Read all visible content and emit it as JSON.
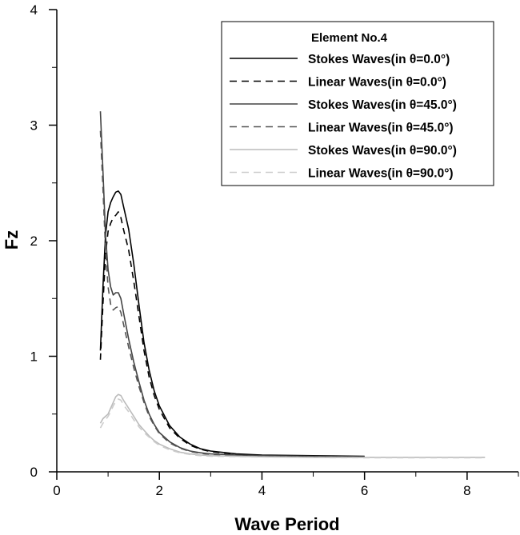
{
  "chart_data": {
    "type": "line",
    "title": "",
    "xlabel": "Wave Period",
    "ylabel": "Fz",
    "xlim": [
      0,
      9
    ],
    "ylim": [
      0,
      4
    ],
    "x_ticks": [
      0,
      2,
      4,
      6,
      8
    ],
    "y_ticks": [
      0,
      1,
      2,
      3,
      4
    ],
    "x_tick_labels": [
      "0",
      "2",
      "4",
      "6",
      "8"
    ],
    "y_tick_labels": [
      "0",
      "1",
      "2",
      "3",
      "4"
    ],
    "grid": false,
    "legend_position": "top-right",
    "legend_title": "Element No.4",
    "series": [
      {
        "name": "Stokes Waves(in θ=0.0°)",
        "color": "#000000",
        "dash": "solid",
        "points": [
          [
            0.85,
            1.05
          ],
          [
            0.9,
            1.6
          ],
          [
            0.95,
            2.05
          ],
          [
            1.0,
            2.25
          ],
          [
            1.05,
            2.33
          ],
          [
            1.1,
            2.38
          ],
          [
            1.15,
            2.42
          ],
          [
            1.2,
            2.43
          ],
          [
            1.25,
            2.4
          ],
          [
            1.3,
            2.3
          ],
          [
            1.4,
            2.1
          ],
          [
            1.5,
            1.8
          ],
          [
            1.6,
            1.45
          ],
          [
            1.7,
            1.12
          ],
          [
            1.8,
            0.88
          ],
          [
            1.9,
            0.7
          ],
          [
            2.0,
            0.57
          ],
          [
            2.2,
            0.4
          ],
          [
            2.4,
            0.3
          ],
          [
            2.6,
            0.24
          ],
          [
            2.8,
            0.2
          ],
          [
            3.0,
            0.18
          ],
          [
            3.5,
            0.155
          ],
          [
            4.0,
            0.145
          ],
          [
            5.0,
            0.14
          ],
          [
            6.0,
            0.135
          ]
        ]
      },
      {
        "name": "Linear Waves(in θ=0.0°)",
        "color": "#000000",
        "dash": "dashed",
        "points": [
          [
            0.85,
            0.97
          ],
          [
            0.9,
            1.45
          ],
          [
            0.95,
            1.88
          ],
          [
            1.0,
            2.08
          ],
          [
            1.05,
            2.15
          ],
          [
            1.1,
            2.2
          ],
          [
            1.15,
            2.22
          ],
          [
            1.2,
            2.25
          ],
          [
            1.25,
            2.2
          ],
          [
            1.3,
            2.1
          ],
          [
            1.4,
            1.92
          ],
          [
            1.5,
            1.65
          ],
          [
            1.6,
            1.35
          ],
          [
            1.7,
            1.05
          ],
          [
            1.8,
            0.82
          ],
          [
            1.9,
            0.66
          ],
          [
            2.0,
            0.54
          ],
          [
            2.2,
            0.38
          ],
          [
            2.4,
            0.29
          ],
          [
            2.6,
            0.23
          ],
          [
            2.8,
            0.195
          ],
          [
            3.0,
            0.175
          ],
          [
            3.5,
            0.15
          ],
          [
            4.0,
            0.14
          ],
          [
            5.0,
            0.135
          ],
          [
            6.0,
            0.13
          ]
        ]
      },
      {
        "name": "Stokes Waves(in θ=45.0°)",
        "color": "#444444",
        "dash": "solid",
        "points": [
          [
            0.85,
            3.12
          ],
          [
            0.9,
            2.6
          ],
          [
            0.95,
            2.05
          ],
          [
            1.0,
            1.75
          ],
          [
            1.05,
            1.6
          ],
          [
            1.1,
            1.53
          ],
          [
            1.15,
            1.55
          ],
          [
            1.2,
            1.55
          ],
          [
            1.25,
            1.5
          ],
          [
            1.3,
            1.38
          ],
          [
            1.4,
            1.15
          ],
          [
            1.5,
            0.95
          ],
          [
            1.6,
            0.78
          ],
          [
            1.7,
            0.62
          ],
          [
            1.8,
            0.5
          ],
          [
            1.9,
            0.41
          ],
          [
            2.0,
            0.34
          ],
          [
            2.2,
            0.26
          ],
          [
            2.4,
            0.21
          ],
          [
            2.6,
            0.18
          ],
          [
            2.8,
            0.165
          ],
          [
            3.0,
            0.155
          ],
          [
            3.5,
            0.145
          ],
          [
            4.0,
            0.14
          ],
          [
            5.0,
            0.135
          ],
          [
            6.0,
            0.13
          ]
        ]
      },
      {
        "name": "Linear Waves(in θ=45.0°)",
        "color": "#555555",
        "dash": "dashed",
        "points": [
          [
            0.85,
            2.95
          ],
          [
            0.9,
            2.45
          ],
          [
            0.95,
            1.92
          ],
          [
            1.0,
            1.6
          ],
          [
            1.05,
            1.45
          ],
          [
            1.1,
            1.4
          ],
          [
            1.15,
            1.42
          ],
          [
            1.2,
            1.43
          ],
          [
            1.25,
            1.38
          ],
          [
            1.3,
            1.28
          ],
          [
            1.4,
            1.08
          ],
          [
            1.5,
            0.9
          ],
          [
            1.6,
            0.74
          ],
          [
            1.7,
            0.6
          ],
          [
            1.8,
            0.48
          ],
          [
            1.9,
            0.4
          ],
          [
            2.0,
            0.33
          ],
          [
            2.2,
            0.25
          ],
          [
            2.4,
            0.205
          ],
          [
            2.6,
            0.175
          ],
          [
            2.8,
            0.16
          ],
          [
            3.0,
            0.15
          ],
          [
            3.5,
            0.14
          ],
          [
            4.0,
            0.135
          ],
          [
            5.0,
            0.13
          ],
          [
            6.0,
            0.128
          ]
        ]
      },
      {
        "name": "Stokes Waves(in θ=90.0°)",
        "color": "#bbbbbb",
        "dash": "solid",
        "points": [
          [
            0.85,
            0.42
          ],
          [
            0.9,
            0.46
          ],
          [
            0.95,
            0.48
          ],
          [
            1.0,
            0.5
          ],
          [
            1.05,
            0.55
          ],
          [
            1.1,
            0.6
          ],
          [
            1.15,
            0.65
          ],
          [
            1.2,
            0.67
          ],
          [
            1.25,
            0.66
          ],
          [
            1.3,
            0.62
          ],
          [
            1.4,
            0.55
          ],
          [
            1.5,
            0.48
          ],
          [
            1.6,
            0.41
          ],
          [
            1.7,
            0.36
          ],
          [
            1.8,
            0.31
          ],
          [
            1.9,
            0.27
          ],
          [
            2.0,
            0.24
          ],
          [
            2.2,
            0.2
          ],
          [
            2.4,
            0.17
          ],
          [
            2.6,
            0.155
          ],
          [
            2.8,
            0.145
          ],
          [
            3.0,
            0.14
          ],
          [
            4.0,
            0.13
          ],
          [
            5.0,
            0.125
          ],
          [
            6.0,
            0.125
          ],
          [
            7.0,
            0.125
          ],
          [
            8.35,
            0.125
          ]
        ]
      },
      {
        "name": "Linear Waves(in θ=90.0°)",
        "color": "#cccccc",
        "dash": "dashed",
        "points": [
          [
            0.85,
            0.38
          ],
          [
            0.9,
            0.42
          ],
          [
            0.95,
            0.45
          ],
          [
            1.0,
            0.48
          ],
          [
            1.05,
            0.52
          ],
          [
            1.1,
            0.57
          ],
          [
            1.15,
            0.61
          ],
          [
            1.2,
            0.63
          ],
          [
            1.25,
            0.62
          ],
          [
            1.3,
            0.58
          ],
          [
            1.4,
            0.52
          ],
          [
            1.5,
            0.45
          ],
          [
            1.6,
            0.39
          ],
          [
            1.7,
            0.34
          ],
          [
            1.8,
            0.3
          ],
          [
            1.9,
            0.26
          ],
          [
            2.0,
            0.23
          ],
          [
            2.2,
            0.19
          ],
          [
            2.4,
            0.165
          ],
          [
            2.6,
            0.15
          ],
          [
            2.8,
            0.14
          ],
          [
            3.0,
            0.135
          ],
          [
            4.0,
            0.128
          ],
          [
            5.0,
            0.123
          ],
          [
            6.0,
            0.122
          ],
          [
            7.0,
            0.122
          ],
          [
            8.35,
            0.122
          ]
        ]
      }
    ]
  }
}
